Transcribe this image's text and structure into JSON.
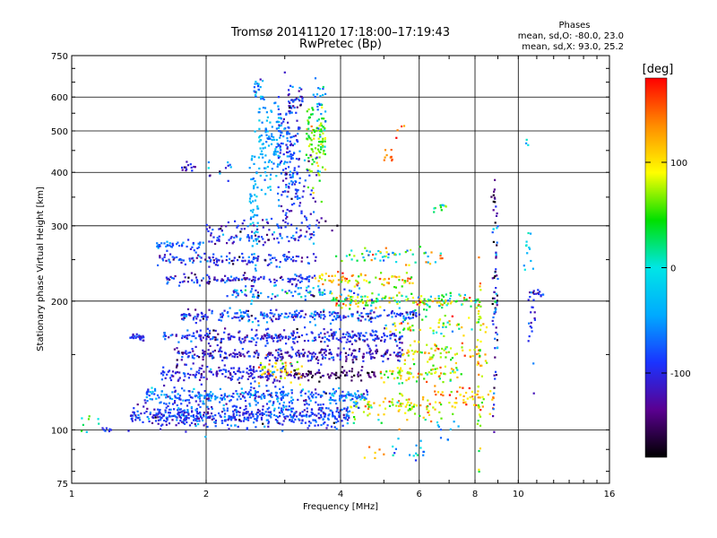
{
  "chart_data": {
    "type": "scatter",
    "title": "Tromsø 20141120 17:18:00–17:19:43",
    "subtitle": "RwPretec (Bp)",
    "xlabel": "Frequency [MHz]",
    "ylabel": "Stationary phase Virtual Height [km]",
    "x_scale": "log",
    "y_scale": "log",
    "xlim": [
      1,
      16
    ],
    "ylim": [
      75,
      750
    ],
    "x_ticks": [
      "1",
      "2",
      "4",
      "6",
      "8",
      "10",
      "16"
    ],
    "x_tick_values": [
      1,
      2,
      4,
      6,
      8,
      10,
      16
    ],
    "y_ticks": [
      "75",
      "100",
      "200",
      "300",
      "400",
      "500",
      "600",
      "750"
    ],
    "y_tick_values": [
      75,
      100,
      200,
      300,
      400,
      500,
      600,
      750
    ],
    "grid": true,
    "phase_stats": {
      "heading": "Phases",
      "line_o": "mean, sd,O: -80.0, 23.0",
      "line_x": "mean, sd,X:  93.0, 25.2"
    },
    "colorbar": {
      "label": "[deg]",
      "range": [
        -180,
        180
      ],
      "ticks": [
        "100",
        "0",
        "-100"
      ],
      "tick_values": [
        100,
        0,
        -100
      ],
      "colors": [
        "#000000",
        "#5a0090",
        "#1a33ff",
        "#00aaff",
        "#00e6e6",
        "#00e000",
        "#ffff00",
        "#ff8c00",
        "#ff0000"
      ]
    },
    "clusters": [
      {
        "fmin": 1.05,
        "fmax": 1.15,
        "h": 105,
        "hs": 2,
        "phase": 20,
        "ps": 30,
        "n": 8
      },
      {
        "fmin": 1.15,
        "fmax": 1.35,
        "h": 100,
        "hs": 1,
        "phase": -90,
        "ps": 20,
        "n": 8
      },
      {
        "fmin": 1.35,
        "fmax": 4.2,
        "h": 108,
        "hs": 3,
        "phase": -90,
        "ps": 25,
        "n": 520
      },
      {
        "fmin": 4.2,
        "fmax": 6.5,
        "h": 112,
        "hs": 4,
        "phase": 90,
        "ps": 40,
        "n": 90
      },
      {
        "fmin": 6.5,
        "fmax": 8.9,
        "h": 118,
        "hs": 5,
        "phase": 110,
        "ps": 30,
        "n": 60
      },
      {
        "fmin": 1.45,
        "fmax": 4.6,
        "h": 120,
        "hs": 3,
        "phase": -70,
        "ps": 30,
        "n": 330
      },
      {
        "fmin": 1.55,
        "fmax": 3.0,
        "h": 135,
        "hs": 3,
        "phase": -100,
        "ps": 20,
        "n": 170
      },
      {
        "fmin": 3.0,
        "fmax": 4.8,
        "h": 135,
        "hs": 2,
        "phase": -150,
        "ps": 20,
        "n": 90
      },
      {
        "fmin": 4.8,
        "fmax": 7.5,
        "h": 135,
        "hs": 3,
        "phase": 80,
        "ps": 40,
        "n": 80
      },
      {
        "fmin": 2.6,
        "fmax": 3.3,
        "h": 140,
        "hs": 5,
        "phase": 100,
        "ps": 30,
        "n": 50
      },
      {
        "fmin": 1.7,
        "fmax": 5.5,
        "h": 150,
        "hs": 3,
        "phase": -110,
        "ps": 25,
        "n": 280
      },
      {
        "fmin": 5.5,
        "fmax": 8.5,
        "h": 150,
        "hs": 4,
        "phase": 100,
        "ps": 40,
        "n": 70
      },
      {
        "fmin": 1.35,
        "fmax": 1.45,
        "h": 165,
        "hs": 2,
        "phase": -95,
        "ps": 15,
        "n": 25
      },
      {
        "fmin": 1.6,
        "fmax": 5.5,
        "h": 165,
        "hs": 3,
        "phase": -100,
        "ps": 25,
        "n": 300
      },
      {
        "fmin": 5.0,
        "fmax": 8.5,
        "h": 175,
        "hs": 5,
        "phase": 60,
        "ps": 60,
        "n": 60
      },
      {
        "fmin": 1.75,
        "fmax": 6.0,
        "h": 185,
        "hs": 3,
        "phase": -90,
        "ps": 30,
        "n": 270
      },
      {
        "fmin": 3.8,
        "fmax": 8.2,
        "h": 200,
        "hs": 4,
        "phase": 60,
        "ps": 60,
        "n": 160
      },
      {
        "fmin": 2.2,
        "fmax": 4.5,
        "h": 210,
        "hs": 4,
        "phase": -60,
        "ps": 40,
        "n": 90
      },
      {
        "fmin": 1.6,
        "fmax": 3.5,
        "h": 225,
        "hs": 3,
        "phase": -100,
        "ps": 25,
        "n": 120
      },
      {
        "fmin": 3.5,
        "fmax": 5.8,
        "h": 225,
        "hs": 5,
        "phase": 110,
        "ps": 40,
        "n": 80
      },
      {
        "fmin": 1.55,
        "fmax": 3.6,
        "h": 250,
        "hs": 4,
        "phase": -95,
        "ps": 25,
        "n": 130
      },
      {
        "fmin": 3.8,
        "fmax": 7.0,
        "h": 255,
        "hs": 6,
        "phase": 30,
        "ps": 70,
        "n": 60
      },
      {
        "fmin": 1.55,
        "fmax": 2.0,
        "h": 270,
        "hs": 3,
        "phase": -70,
        "ps": 20,
        "n": 40
      },
      {
        "fmin": 2.0,
        "fmax": 3.5,
        "h": 280,
        "hs": 4,
        "phase": -90,
        "ps": 30,
        "n": 60
      },
      {
        "fmin": 2.0,
        "fmax": 4.0,
        "h": 300,
        "hs": 6,
        "phase": -110,
        "ps": 40,
        "n": 50
      },
      {
        "fmin": 1.75,
        "fmax": 1.9,
        "h": 410,
        "hs": 5,
        "phase": -110,
        "ps": 15,
        "n": 14
      },
      {
        "fmin": 2.0,
        "fmax": 2.3,
        "h": 405,
        "hs": 10,
        "phase": -80,
        "ps": 40,
        "n": 12
      },
      {
        "fmin": 2.5,
        "fmax": 2.62,
        "h": 330,
        "hs": 70,
        "phase": -40,
        "ps": 15,
        "n": 60
      },
      {
        "fmin": 2.62,
        "fmax": 2.95,
        "h": 470,
        "hs": 60,
        "phase": -40,
        "ps": 20,
        "n": 110
      },
      {
        "fmin": 2.9,
        "fmax": 3.25,
        "h": 440,
        "hs": 80,
        "phase": -90,
        "ps": 25,
        "n": 160
      },
      {
        "fmin": 2.55,
        "fmax": 2.7,
        "h": 620,
        "hs": 20,
        "phase": -50,
        "ps": 25,
        "n": 25
      },
      {
        "fmin": 3.05,
        "fmax": 3.3,
        "h": 600,
        "hs": 30,
        "phase": -110,
        "ps": 30,
        "n": 35
      },
      {
        "fmin": 3.35,
        "fmax": 3.7,
        "h": 480,
        "hs": 45,
        "phase": 60,
        "ps": 25,
        "n": 110
      },
      {
        "fmin": 3.45,
        "fmax": 3.7,
        "h": 580,
        "hs": 40,
        "phase": -45,
        "ps": 25,
        "n": 25
      },
      {
        "fmin": 3.1,
        "fmax": 3.6,
        "h": 350,
        "hs": 40,
        "phase": -90,
        "ps": 30,
        "n": 40
      },
      {
        "fmin": 5.0,
        "fmax": 5.25,
        "h": 430,
        "hs": 15,
        "phase": 140,
        "ps": 15,
        "n": 10
      },
      {
        "fmin": 5.1,
        "fmax": 5.6,
        "h": 500,
        "hs": 15,
        "phase": 140,
        "ps": 20,
        "n": 4
      },
      {
        "fmin": 6.4,
        "fmax": 6.9,
        "h": 330,
        "hs": 4,
        "phase": 40,
        "ps": 60,
        "n": 10
      },
      {
        "fmin": 4.5,
        "fmax": 5.0,
        "h": 90,
        "hs": 4,
        "phase": 120,
        "ps": 30,
        "n": 6
      },
      {
        "fmin": 5.2,
        "fmax": 6.2,
        "h": 88,
        "hs": 4,
        "phase": -20,
        "ps": 40,
        "n": 16
      },
      {
        "fmin": 6.5,
        "fmax": 7.5,
        "h": 100,
        "hs": 4,
        "phase": -60,
        "ps": 30,
        "n": 10
      },
      {
        "fmin": 8.1,
        "fmax": 8.25,
        "h": 160,
        "hs": 40,
        "phase": 90,
        "ps": 40,
        "n": 40
      },
      {
        "fmin": 8.75,
        "fmax": 9.0,
        "h": 200,
        "hs": 70,
        "phase": -100,
        "ps": 60,
        "n": 70
      },
      {
        "fmin": 8.7,
        "fmax": 8.9,
        "h": 360,
        "hs": 20,
        "phase": -150,
        "ps": 20,
        "n": 10
      },
      {
        "fmin": 10.5,
        "fmax": 10.9,
        "h": 180,
        "hs": 20,
        "phase": -100,
        "ps": 20,
        "n": 18
      },
      {
        "fmin": 10.5,
        "fmax": 11.4,
        "h": 208,
        "hs": 3,
        "phase": -100,
        "ps": 25,
        "n": 14
      },
      {
        "fmin": 10.3,
        "fmax": 10.8,
        "h": 260,
        "hs": 20,
        "phase": -30,
        "ps": 30,
        "n": 12
      },
      {
        "fmin": 10.3,
        "fmax": 10.6,
        "h": 470,
        "hs": 10,
        "phase": -20,
        "ps": 20,
        "n": 3
      }
    ]
  }
}
